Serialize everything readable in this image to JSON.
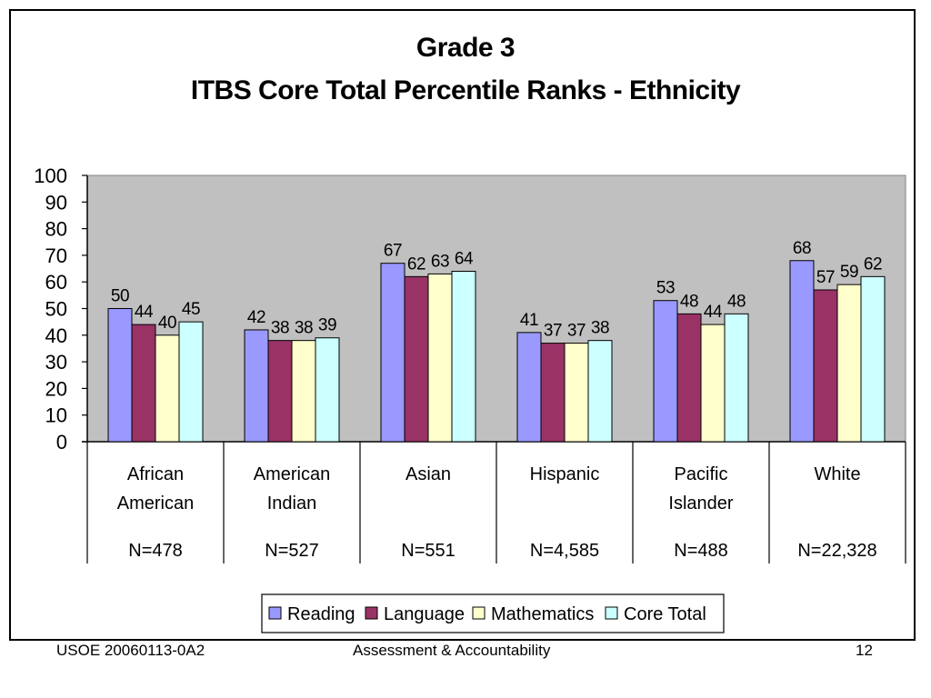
{
  "slide": {
    "title_line1": "Grade 3",
    "title_line2": "ITBS Core Total Percentile Ranks - Ethnicity",
    "footer_left": "USOE 20060113-0A2",
    "footer_center": "Assessment & Accountability",
    "footer_right": "12"
  },
  "chart_data": {
    "type": "bar",
    "title": "Grade 3 ITBS Core Total Percentile Ranks - Ethnicity",
    "categories": [
      {
        "lines": [
          "African",
          "American"
        ],
        "n": "N=478"
      },
      {
        "lines": [
          "American",
          "Indian"
        ],
        "n": "N=527"
      },
      {
        "lines": [
          "Asian"
        ],
        "n": "N=551"
      },
      {
        "lines": [
          "Hispanic"
        ],
        "n": "N=4,585"
      },
      {
        "lines": [
          "Pacific",
          "Islander"
        ],
        "n": "N=488"
      },
      {
        "lines": [
          "White"
        ],
        "n": "N=22,328"
      }
    ],
    "series": [
      {
        "name": "Reading",
        "color": "#9999ff",
        "values": [
          50,
          42,
          67,
          41,
          53,
          68
        ]
      },
      {
        "name": "Language",
        "color": "#993366",
        "values": [
          44,
          38,
          62,
          37,
          48,
          57
        ]
      },
      {
        "name": "Mathematics",
        "color": "#ffffcc",
        "values": [
          40,
          38,
          63,
          37,
          44,
          59
        ]
      },
      {
        "name": "Core Total",
        "color": "#ccffff",
        "values": [
          45,
          39,
          64,
          38,
          48,
          62
        ]
      }
    ],
    "ylim": [
      0,
      100
    ],
    "yticks": [
      0,
      10,
      20,
      30,
      40,
      50,
      60,
      70,
      80,
      90,
      100
    ],
    "plot_background": "#c0c0c0",
    "legend_position": "bottom",
    "grid": false
  }
}
